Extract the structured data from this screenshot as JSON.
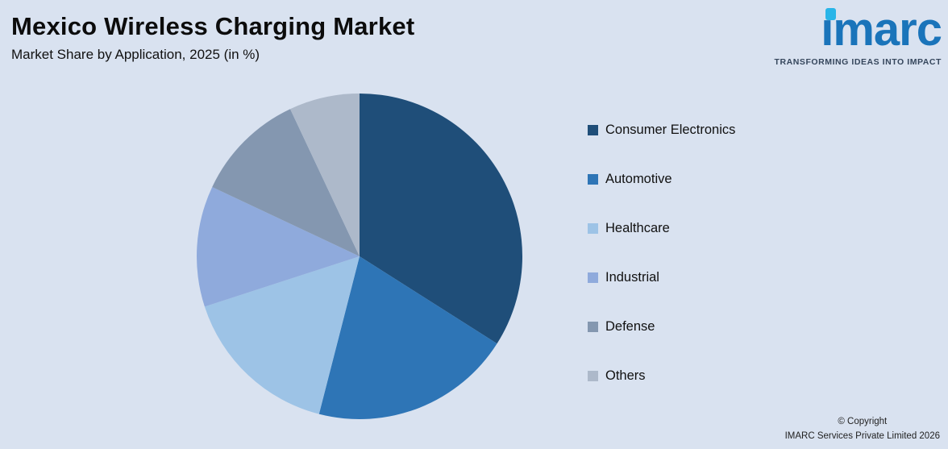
{
  "background_color": "#d9e2f0",
  "header": {
    "title": "Mexico Wireless Charging Market",
    "subtitle": "Market Share by Application, 2025 (in %)"
  },
  "logo": {
    "brand": "imarc",
    "tagline": "TRANSFORMING IDEAS INTO IMPACT",
    "brand_color": "#1a74ba",
    "dot_color": "#29b5e8",
    "tagline_color": "#35465c"
  },
  "footer": {
    "line1": "© Copyright",
    "line2": "IMARC Services Private Limited 2026"
  },
  "chart_data": {
    "type": "pie",
    "title": "Mexico Wireless Charging Market",
    "subtitle": "Market Share by Application, 2025 (in %)",
    "categories": [
      "Consumer Electronics",
      "Automotive",
      "Healthcare",
      "Industrial",
      "Defense",
      "Others"
    ],
    "values": [
      34,
      20,
      16,
      12,
      11,
      7
    ],
    "colors": [
      "#1f4e79",
      "#2e75b6",
      "#9dc3e6",
      "#8faadc",
      "#8497b0",
      "#adb9ca"
    ],
    "legend_position": "right",
    "start_angle_deg": 0,
    "direction": "clockwise"
  }
}
